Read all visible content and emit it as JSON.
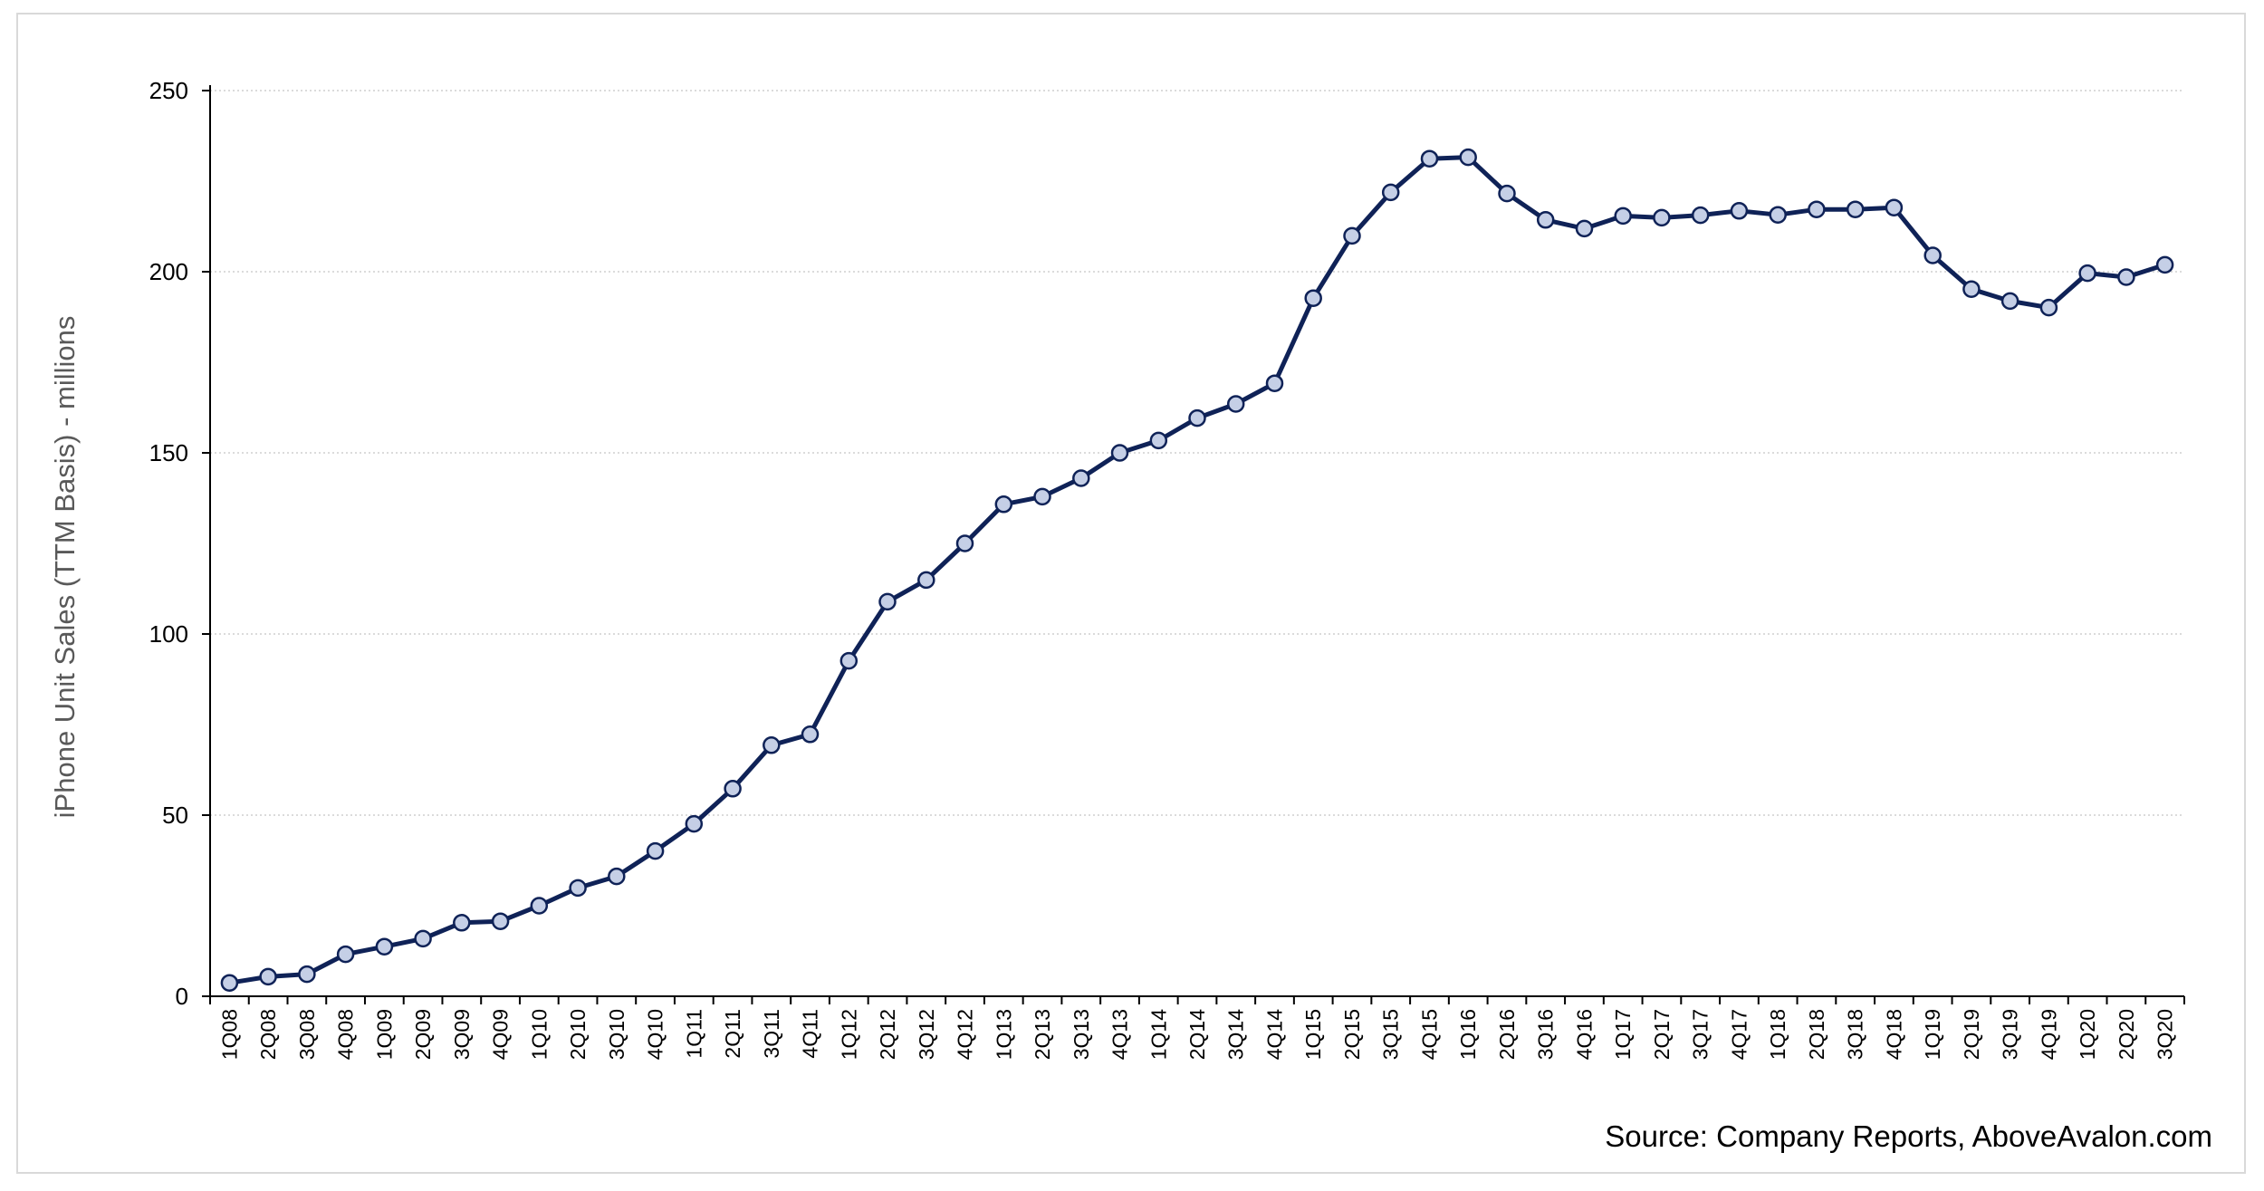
{
  "chart_data": {
    "type": "line",
    "title": "",
    "xlabel": "",
    "ylabel": "iPhone Unit Sales (TTM Basis) - millions",
    "ylim": [
      0,
      250
    ],
    "yticks": [
      0,
      50,
      100,
      150,
      200,
      250
    ],
    "grid": "horizontal-dotted",
    "source": "Source: Company Reports, AboveAvalon.com",
    "colors": {
      "line": "#0f2257",
      "marker_fill": "#c5cfe6",
      "marker_stroke": "#0f2257",
      "grid": "#cfcfcf",
      "axis": "#000000"
    },
    "categories": [
      "1Q08",
      "2Q08",
      "3Q08",
      "4Q08",
      "1Q09",
      "2Q09",
      "3Q09",
      "4Q09",
      "1Q10",
      "2Q10",
      "3Q10",
      "4Q10",
      "1Q11",
      "2Q11",
      "3Q11",
      "4Q11",
      "1Q12",
      "2Q12",
      "3Q12",
      "4Q12",
      "1Q13",
      "2Q13",
      "3Q13",
      "4Q13",
      "1Q14",
      "2Q14",
      "3Q14",
      "4Q14",
      "1Q15",
      "2Q15",
      "3Q15",
      "4Q15",
      "1Q16",
      "2Q16",
      "3Q16",
      "4Q16",
      "1Q17",
      "2Q17",
      "3Q17",
      "4Q17",
      "1Q18",
      "2Q18",
      "3Q18",
      "4Q18",
      "1Q19",
      "2Q19",
      "3Q19",
      "4Q19",
      "1Q20",
      "2Q20",
      "3Q20"
    ],
    "series": [
      {
        "values": [
          3.7,
          5.4,
          6.1,
          11.6,
          13.7,
          15.9,
          20.3,
          20.7,
          25.0,
          29.9,
          33.1,
          40.1,
          47.6,
          57.3,
          69.3,
          72.3,
          92.6,
          108.9,
          114.9,
          125.0,
          135.8,
          137.9,
          143.0,
          150.0,
          153.4,
          159.6,
          163.5,
          169.2,
          192.7,
          209.9,
          221.9,
          231.2,
          231.6,
          221.6,
          214.3,
          211.9,
          215.4,
          214.9,
          215.6,
          216.8,
          215.7,
          217.2,
          217.2,
          217.7,
          204.5,
          195.2,
          191.9,
          190.1,
          199.6,
          198.5,
          201.9
        ]
      }
    ]
  }
}
